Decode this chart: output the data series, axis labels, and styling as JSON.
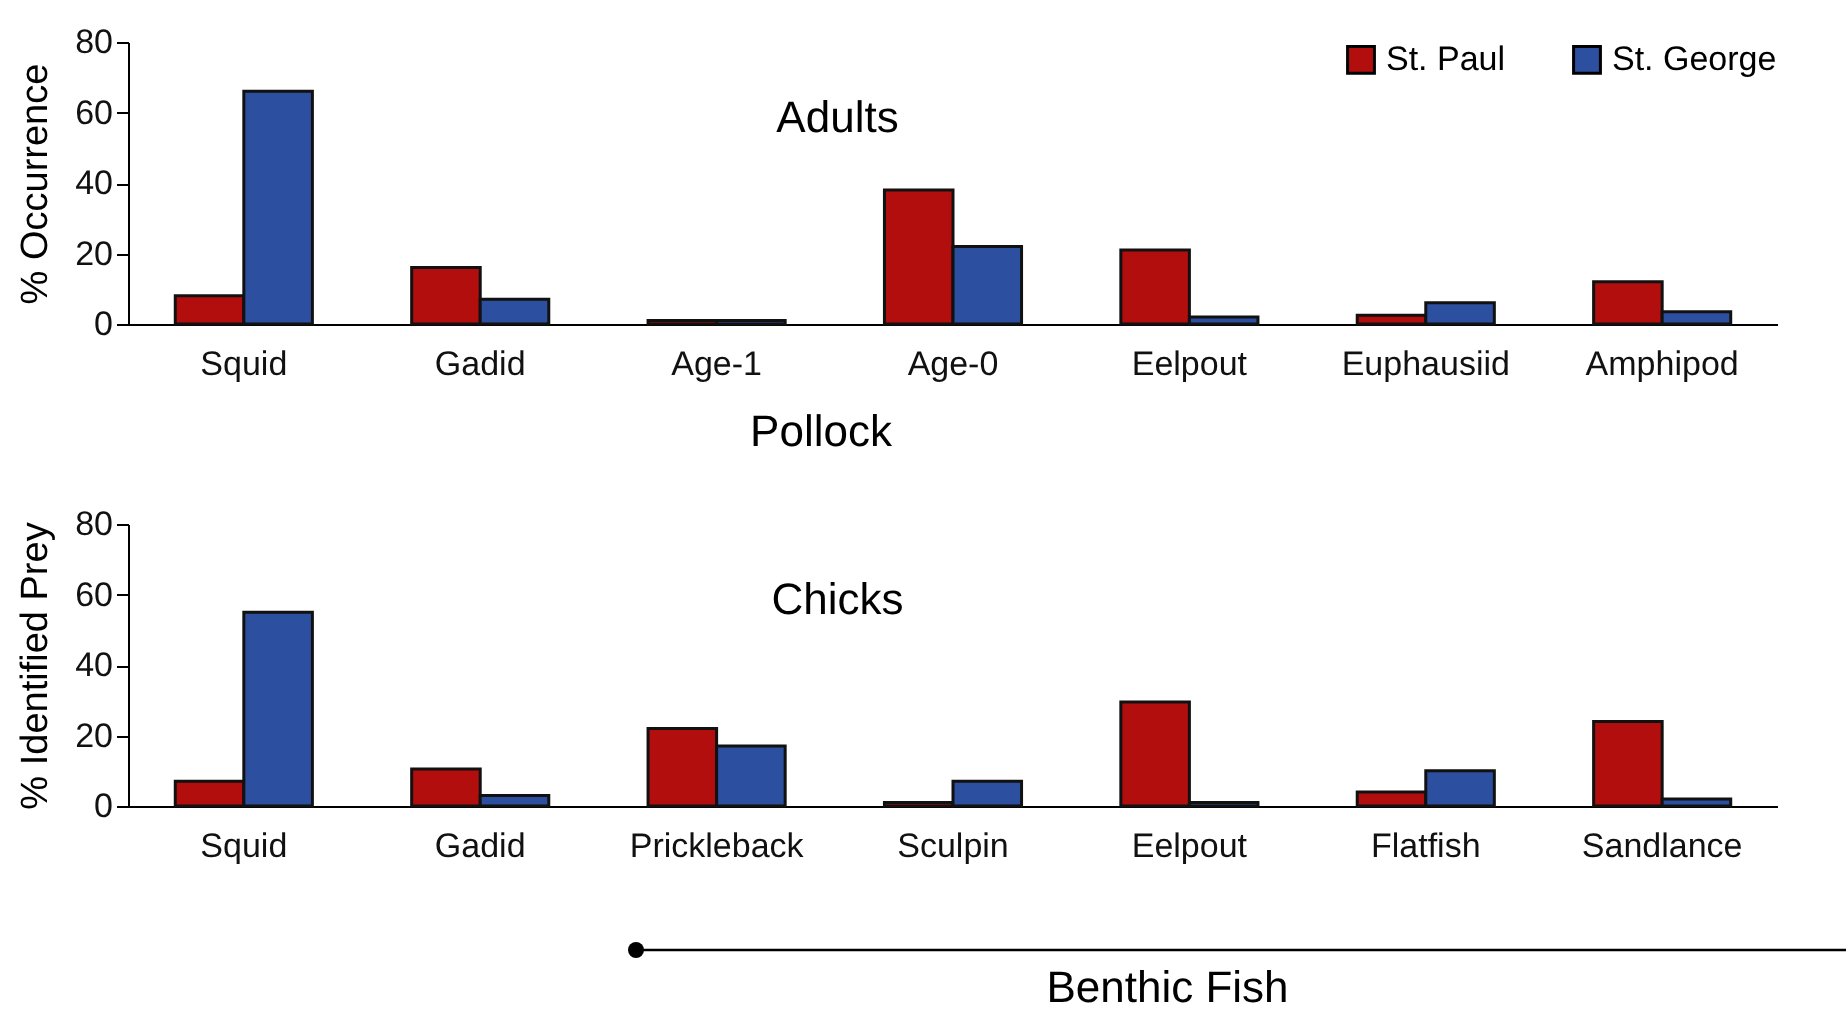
{
  "chart_data": [
    {
      "type": "bar",
      "ylabel": "% Occurrence",
      "categories": [
        "Squid",
        "Gadid",
        "Age-1",
        "Age-0",
        "Eelpout",
        "Euphausiid",
        "Amphipod"
      ],
      "series": [
        {
          "name": "St. Paul",
          "color": "#b30e0e",
          "values": [
            8,
            16,
            1,
            38,
            21,
            2.5,
            12
          ]
        },
        {
          "name": "St. George",
          "color": "#2c4f9f",
          "values": [
            66,
            7,
            1,
            22,
            2,
            6,
            3.5
          ]
        }
      ],
      "ylim": [
        0,
        80
      ],
      "yticks": [
        0,
        20,
        40,
        60,
        80
      ],
      "legend": "top right",
      "annotations": [
        "Adults",
        "Pollock"
      ]
    },
    {
      "type": "bar",
      "ylabel": "% Identified Prey",
      "categories": [
        "Squid",
        "Gadid",
        "Prickleback",
        "Sculpin",
        "Eelpout",
        "Flatfish",
        "Sandlance"
      ],
      "series": [
        {
          "name": "St. Paul",
          "color": "#b30e0e",
          "values": [
            7,
            10.5,
            22,
            1,
            29.5,
            4,
            24
          ]
        },
        {
          "name": "St. George",
          "color": "#2c4f9f",
          "values": [
            55,
            3,
            17,
            7,
            1,
            10,
            2
          ]
        }
      ],
      "ylim": [
        0,
        80
      ],
      "yticks": [
        0,
        20,
        40,
        60,
        80
      ],
      "annotations": [
        "Chicks",
        "Benthic Fish"
      ]
    }
  ]
}
